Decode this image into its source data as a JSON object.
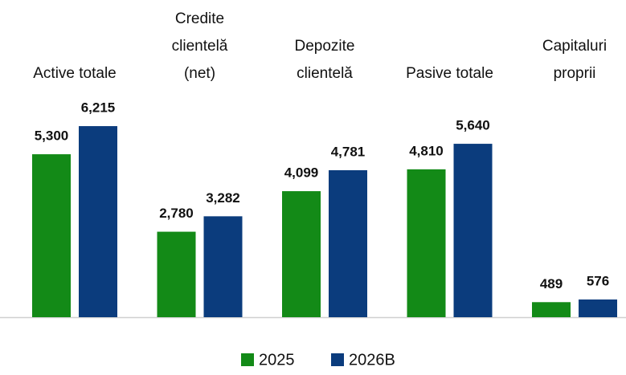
{
  "chart_data": {
    "type": "bar",
    "categories": [
      "Active totale",
      "Credite\nclientelă\n(net)",
      "Depozite\nclientelă",
      "Pasive totale",
      "Capitaluri\nproprii"
    ],
    "series": [
      {
        "name": "2025",
        "color": "#138a17",
        "values": [
          5300,
          2780,
          4099,
          4810,
          489
        ],
        "value_labels": [
          "5,300",
          "2,780",
          "4,099",
          "4,810",
          "489"
        ]
      },
      {
        "name": "2026B",
        "color": "#0b3c7d",
        "values": [
          6215,
          3282,
          4781,
          5640,
          576
        ],
        "value_labels": [
          "6,215",
          "3,282",
          "4,781",
          "5,640",
          "576"
        ]
      }
    ],
    "ylim": [
      0,
      7000
    ],
    "legend": "bottom"
  }
}
